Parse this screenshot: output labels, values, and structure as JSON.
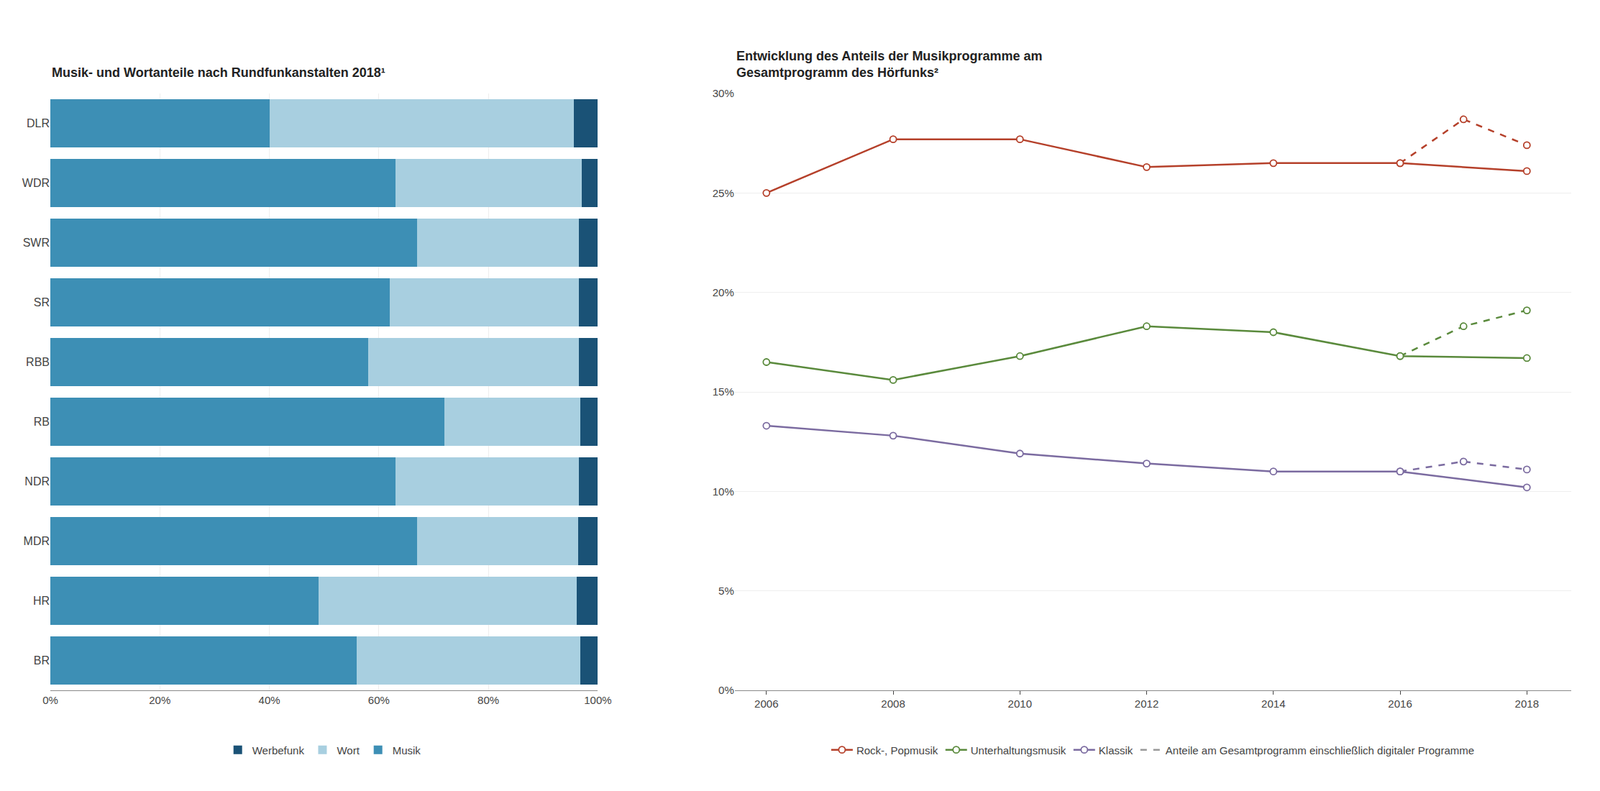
{
  "chart_data": [
    {
      "type": "bar",
      "orientation": "horizontal",
      "stacked": true,
      "title": "Musik- und Wortanteile nach Rundfunkanstalten 2018¹",
      "categories": [
        "DLR",
        "WDR",
        "SWR",
        "SR",
        "RBB",
        "RB",
        "NDR",
        "MDR",
        "HR",
        "BR"
      ],
      "series": [
        {
          "name": "Musik",
          "color": "#3d8fb5",
          "values": [
            0.4,
            0.63,
            0.67,
            0.62,
            0.58,
            0.72,
            0.63,
            0.67,
            0.49,
            0.56
          ]
        },
        {
          "name": "Wort",
          "color": "#a8cfe0",
          "values": [
            0.556,
            0.34,
            0.295,
            0.345,
            0.385,
            0.248,
            0.335,
            0.294,
            0.472,
            0.408
          ]
        },
        {
          "name": "Werbefunk",
          "color": "#1a5276",
          "values": [
            0.044,
            0.03,
            0.035,
            0.035,
            0.035,
            0.032,
            0.035,
            0.036,
            0.038,
            0.032
          ]
        }
      ],
      "xlim": [
        0,
        1.0
      ],
      "xticks": [
        {
          "value": 0,
          "label": "0%"
        },
        {
          "value": 0.2,
          "label": "20%"
        },
        {
          "value": 0.4,
          "label": "40%"
        },
        {
          "value": 0.6,
          "label": "60%"
        },
        {
          "value": 0.8,
          "label": "80%"
        },
        {
          "value": 1.0,
          "label": "100%"
        }
      ],
      "grid": true,
      "legend": "bottom"
    },
    {
      "type": "line",
      "title": "Entwicklung des Anteils der Musikprogramme am\nGesamtprogramm des Hörfunks²",
      "series": [
        {
          "name": "Rock-, Popmusik",
          "color": "#b5402a",
          "marker": "circle",
          "x": [
            2006,
            2008,
            2010,
            2012,
            2014,
            2016,
            2018
          ],
          "values": [
            0.25,
            0.277,
            0.277,
            0.263,
            0.265,
            0.265,
            0.261
          ]
        },
        {
          "color": "#b5402a",
          "marker": "circle",
          "line_style": "dashed",
          "x": [
            2016,
            2017,
            2018
          ],
          "values": [
            0.265,
            0.287,
            0.274
          ]
        },
        {
          "name": "Unterhaltungsmusik",
          "color": "#5a8a3c",
          "marker": "circle",
          "x": [
            2006,
            2008,
            2010,
            2012,
            2014,
            2016,
            2018
          ],
          "values": [
            0.165,
            0.156,
            0.168,
            0.183,
            0.18,
            0.168,
            0.167
          ]
        },
        {
          "color": "#5a8a3c",
          "marker": "circle",
          "line_style": "dashed",
          "x": [
            2016,
            2017,
            2018
          ],
          "values": [
            0.168,
            0.183,
            0.191
          ]
        },
        {
          "name": "Klassik",
          "color": "#7b6ba0",
          "marker": "circle",
          "x": [
            2006,
            2008,
            2010,
            2012,
            2014,
            2016,
            2018
          ],
          "values": [
            0.133,
            0.128,
            0.119,
            0.114,
            0.11,
            0.11,
            0.102
          ]
        },
        {
          "color": "#7b6ba0",
          "marker": "circle",
          "line_style": "dashed",
          "x": [
            2016,
            2017,
            2018
          ],
          "values": [
            0.11,
            0.115,
            0.111
          ]
        },
        {
          "name": "Anteile am Gesamtprogramm einschließlich digitaler Programme",
          "color": "#999999",
          "line_style": "dashed",
          "x": [],
          "values": []
        }
      ],
      "xlim": [
        2005.5,
        2018.7
      ],
      "xticks": [
        2006,
        2008,
        2010,
        2012,
        2014,
        2016,
        2018
      ],
      "ylim": [
        0,
        0.3
      ],
      "yticks": [
        {
          "value": 0,
          "label": "0%"
        },
        {
          "value": 0.05,
          "label": "5%"
        },
        {
          "value": 0.1,
          "label": "10%"
        },
        {
          "value": 0.15,
          "label": "15%"
        },
        {
          "value": 0.2,
          "label": "20%"
        },
        {
          "value": 0.25,
          "label": "25%"
        },
        {
          "value": 0.3,
          "label": "30%"
        }
      ],
      "grid": true,
      "legend": "bottom"
    }
  ]
}
